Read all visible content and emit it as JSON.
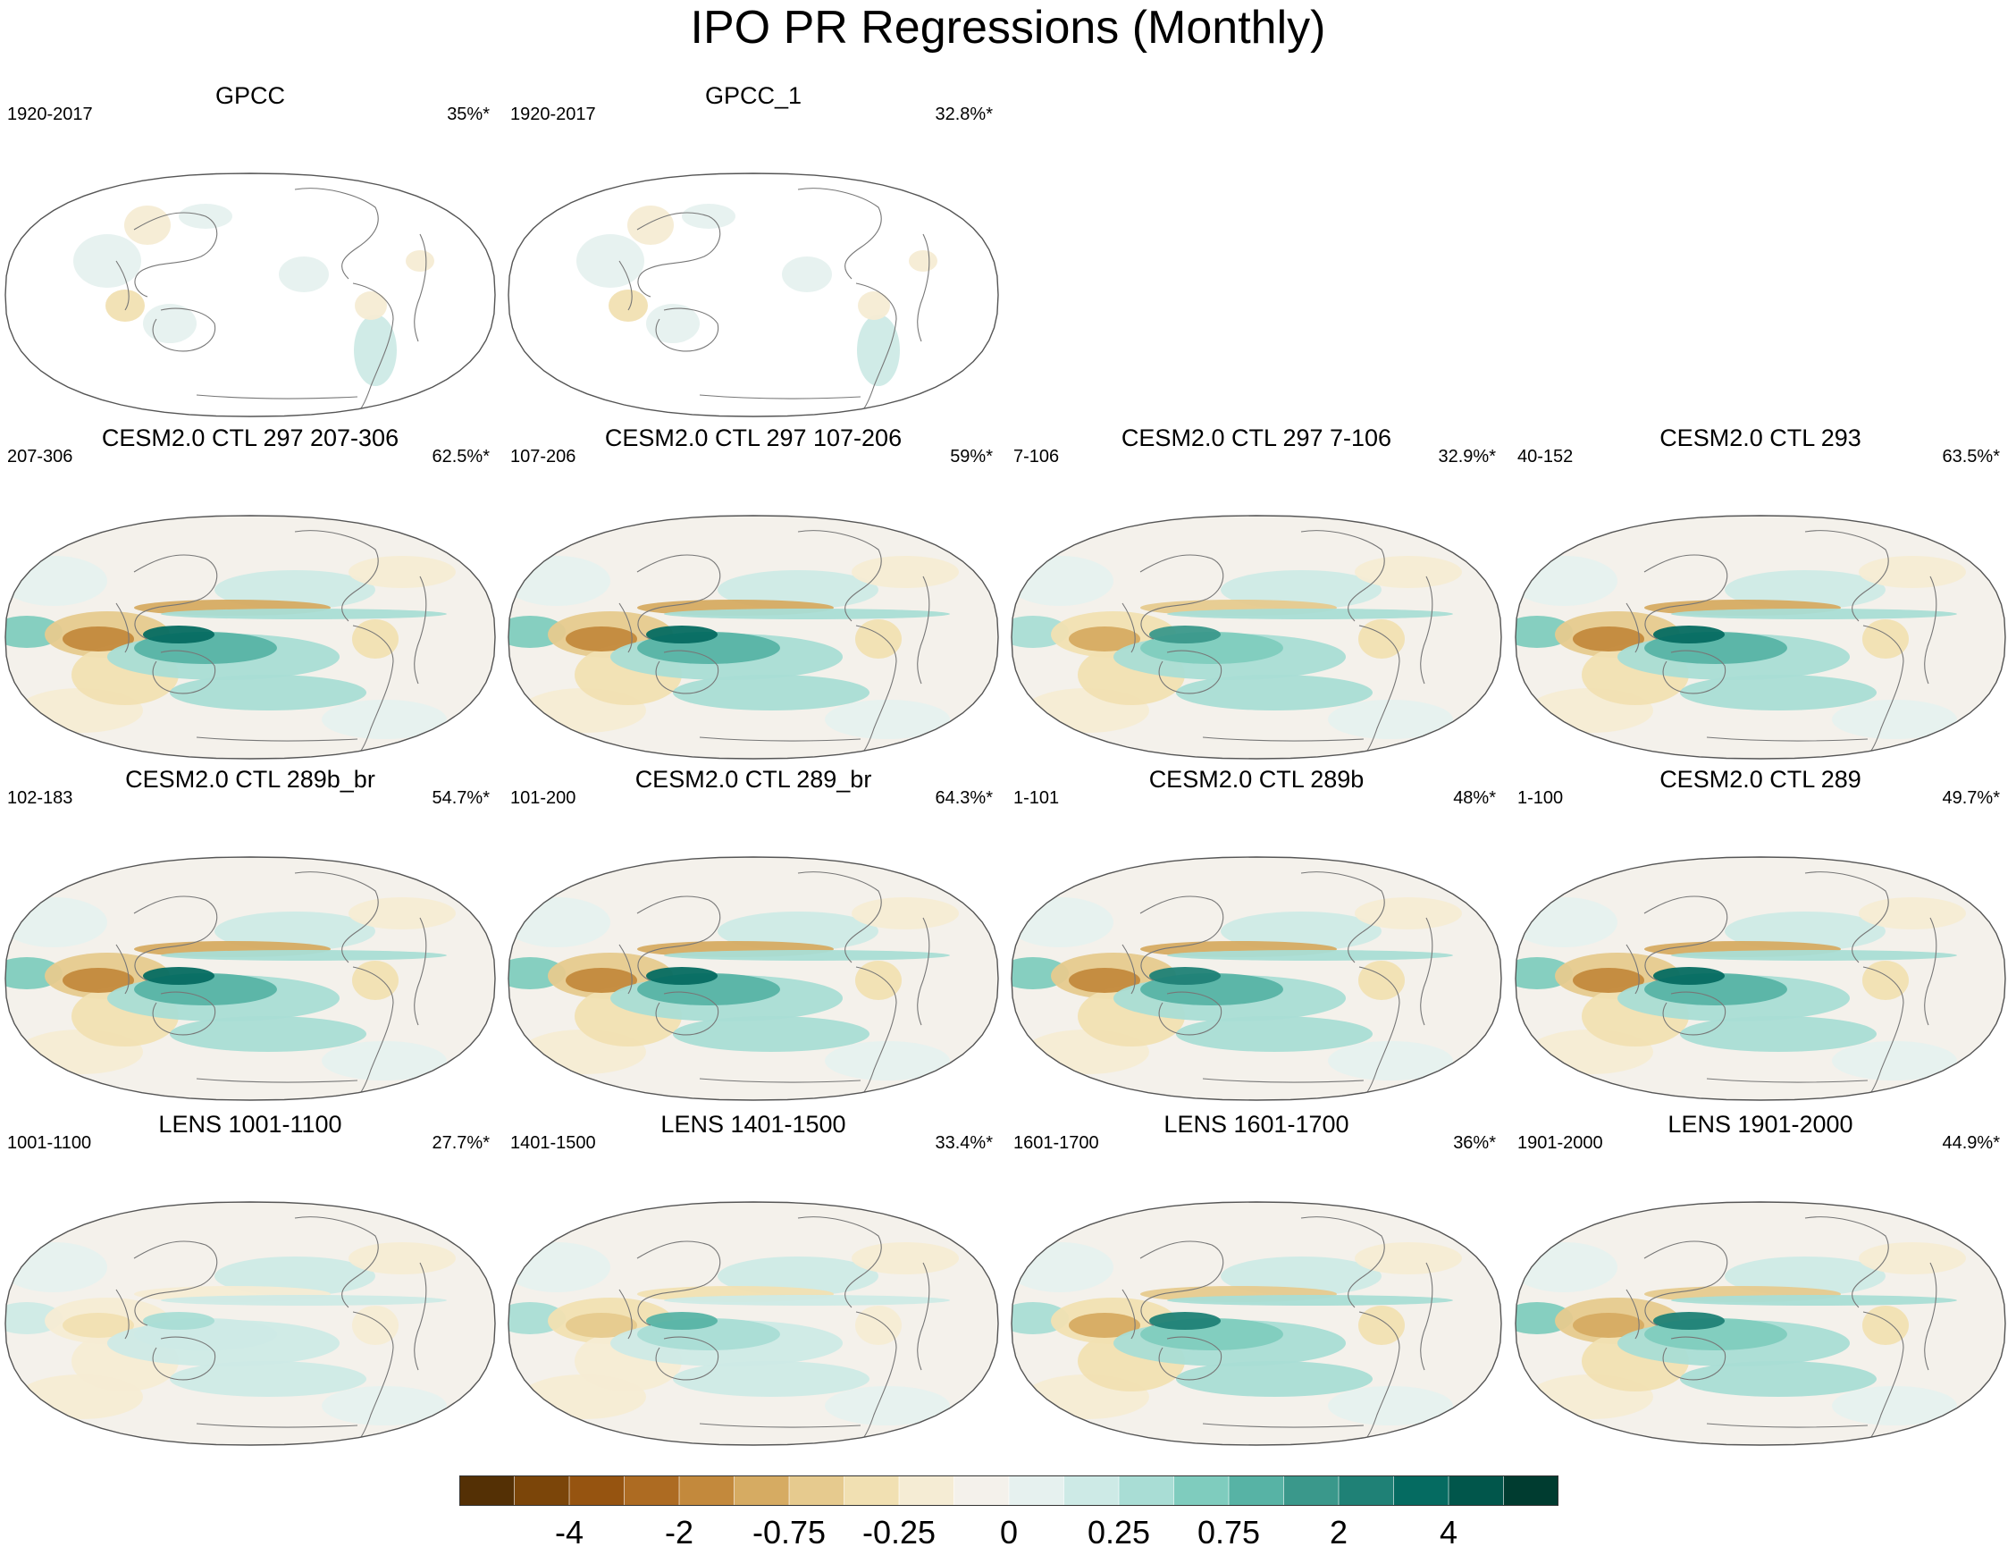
{
  "title": "IPO PR Regressions (Monthly)",
  "chart_data": {
    "type": "heatmap",
    "title": "IPO PR Regressions (Monthly)",
    "projection": "Robinson, Pacific-centered",
    "colorbar": {
      "colors": [
        "#543005",
        "#7b4509",
        "#965410",
        "#ad6b22",
        "#c3893c",
        "#d6ab62",
        "#e6ca8e",
        "#f1e0b2",
        "#f5ecd4",
        "#f4f1eb",
        "#e6f1ef",
        "#cdeae6",
        "#a9ddd5",
        "#7fccbe",
        "#57b3a5",
        "#3a988b",
        "#1f8176",
        "#056b61",
        "#01564b",
        "#003c30"
      ],
      "tick_labels": [
        "-4",
        "-2",
        "-0.75",
        "-0.25",
        "0",
        "0.25",
        "0.75",
        "2",
        "4"
      ]
    },
    "panels": [
      {
        "title": "GPCC",
        "left": "1920-2017",
        "right": "35%*",
        "amp": 0.18
      },
      {
        "title": "GPCC_1",
        "left": "1920-2017",
        "right": "32.8%*",
        "amp": 0.18
      },
      {
        "title": "CESM2.0 CTL 297 207-306",
        "left": "207-306",
        "right": "62.5%*",
        "amp": 1.0
      },
      {
        "title": "CESM2.0 CTL 297 107-206",
        "left": "107-206",
        "right": "59%*",
        "amp": 1.0
      },
      {
        "title": "CESM2.0 CTL 297 7-106",
        "left": "7-106",
        "right": "32.9%*",
        "amp": 0.75
      },
      {
        "title": "CESM2.0 CTL 293",
        "left": "40-152",
        "right": "63.5%*",
        "amp": 1.0
      },
      {
        "title": "CESM2.0 CTL 289b_br",
        "left": "102-183",
        "right": "54.7%*",
        "amp": 1.0
      },
      {
        "title": "CESM2.0 CTL 289_br",
        "left": "101-200",
        "right": "64.3%*",
        "amp": 1.0
      },
      {
        "title": "CESM2.0 CTL 289b",
        "left": "1-101",
        "right": "48%*",
        "amp": 0.9
      },
      {
        "title": "CESM2.0 CTL 289",
        "left": "1-100",
        "right": "49.7%*",
        "amp": 1.0
      },
      {
        "title": "LENS 1001-1100",
        "left": "1001-1100",
        "right": "27.7%*",
        "amp": 0.35
      },
      {
        "title": "LENS 1401-1500",
        "left": "1401-1500",
        "right": "33.4%*",
        "amp": 0.55
      },
      {
        "title": "LENS 1601-1700",
        "left": "1601-1700",
        "right": "36%*",
        "amp": 0.8
      },
      {
        "title": "LENS 1901-2000",
        "left": "1901-2000",
        "right": "44.9%*",
        "amp": 0.85
      }
    ]
  }
}
